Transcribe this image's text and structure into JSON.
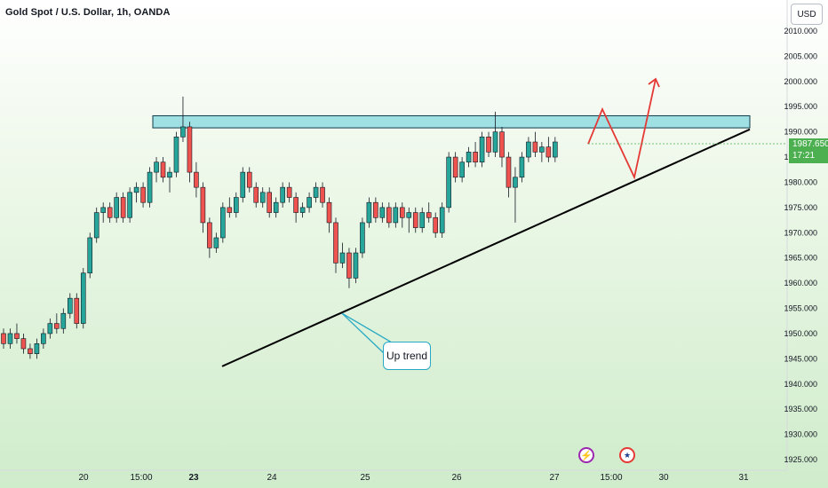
{
  "header": {
    "title": "Gold Spot / U.S. Dollar, 1h, OANDA",
    "currency": "USD"
  },
  "price_tag": {
    "price": "1987.650",
    "countdown": "17:21"
  },
  "annotation": {
    "label": "Up trend"
  },
  "icons": {
    "lightning": "lightning-icon",
    "flag": "us-flag-icon"
  },
  "colors": {
    "up": "#26a69a",
    "down": "#ef5350",
    "resistance_fill": "#8fdbe0",
    "trendline": "#000000",
    "projection": "#e53935",
    "callout": "#26a8c4",
    "price_tag": "#4caf50"
  },
  "chart_data": {
    "type": "candlestick",
    "y_axis": {
      "min": 1925,
      "max": 2010,
      "ticks": [
        "2010.000",
        "2005.000",
        "2000.000",
        "1995.000",
        "1990.000",
        "1985.000",
        "1980.000",
        "1975.000",
        "1970.000",
        "1965.000",
        "1960.000",
        "1955.000",
        "1950.000",
        "1945.000",
        "1940.000",
        "1935.000",
        "1930.000",
        "1925.000"
      ]
    },
    "x_axis": {
      "labels": [
        {
          "text": "20",
          "bold": false
        },
        {
          "text": "15:00",
          "bold": false
        },
        {
          "text": "23",
          "bold": true
        },
        {
          "text": "24",
          "bold": false
        },
        {
          "text": "25",
          "bold": false
        },
        {
          "text": "26",
          "bold": false
        },
        {
          "text": "27",
          "bold": false
        },
        {
          "text": "15:00",
          "bold": false
        },
        {
          "text": "30",
          "bold": false
        },
        {
          "text": "31",
          "bold": false
        }
      ]
    },
    "resistance_zone": {
      "top": 1993.2,
      "bottom": 1990.8
    },
    "trendline": {
      "start": {
        "x": "23 (about 03:00)",
        "y": 1943.5
      },
      "end": {
        "x": "31 (about 00:00)",
        "y": 1990.5
      }
    },
    "projection_path": [
      1987.6,
      1994.5,
      1981.0,
      2000.5
    ],
    "candles": [
      [
        1950,
        1951,
        1947,
        1948
      ],
      [
        1948,
        1951,
        1947,
        1950
      ],
      [
        1950,
        1952,
        1948,
        1949
      ],
      [
        1949,
        1950,
        1946,
        1947
      ],
      [
        1947,
        1948,
        1945,
        1946
      ],
      [
        1946,
        1949,
        1945,
        1948
      ],
      [
        1948,
        1951,
        1947,
        1950
      ],
      [
        1950,
        1953,
        1949,
        1952
      ],
      [
        1952,
        1954,
        1950,
        1951
      ],
      [
        1951,
        1955,
        1950,
        1954
      ],
      [
        1954,
        1958,
        1953,
        1957
      ],
      [
        1957,
        1958,
        1951,
        1952
      ],
      [
        1952,
        1963,
        1951,
        1962
      ],
      [
        1962,
        1970,
        1961,
        1969
      ],
      [
        1969,
        1975,
        1968,
        1974
      ],
      [
        1974,
        1976,
        1972,
        1975
      ],
      [
        1975,
        1976,
        1972,
        1973
      ],
      [
        1973,
        1978,
        1972,
        1977
      ],
      [
        1977,
        1978,
        1972,
        1973
      ],
      [
        1973,
        1979,
        1972,
        1978
      ],
      [
        1978,
        1980,
        1976,
        1979
      ],
      [
        1979,
        1980,
        1975,
        1976
      ],
      [
        1976,
        1983,
        1975,
        1982
      ],
      [
        1982,
        1985,
        1980,
        1984
      ],
      [
        1984,
        1985,
        1980,
        1981
      ],
      [
        1981,
        1983,
        1978,
        1982
      ],
      [
        1982,
        1990,
        1981,
        1989
      ],
      [
        1989,
        1997,
        1988,
        1991
      ],
      [
        1991,
        1992,
        1980,
        1982
      ],
      [
        1982,
        1984,
        1977,
        1979
      ],
      [
        1979,
        1980,
        1970,
        1972
      ],
      [
        1972,
        1973,
        1965,
        1967
      ],
      [
        1967,
        1970,
        1966,
        1969
      ],
      [
        1969,
        1976,
        1968,
        1975
      ],
      [
        1975,
        1977,
        1973,
        1974
      ],
      [
        1974,
        1978,
        1973,
        1977
      ],
      [
        1977,
        1983,
        1976,
        1982
      ],
      [
        1982,
        1983,
        1978,
        1979
      ],
      [
        1979,
        1980,
        1975,
        1976
      ],
      [
        1976,
        1979,
        1975,
        1978
      ],
      [
        1978,
        1979,
        1973,
        1974
      ],
      [
        1974,
        1977,
        1973,
        1976
      ],
      [
        1976,
        1980,
        1975,
        1979
      ],
      [
        1979,
        1980,
        1976,
        1977
      ],
      [
        1977,
        1978,
        1972,
        1974
      ],
      [
        1974,
        1976,
        1973,
        1975
      ],
      [
        1975,
        1978,
        1974,
        1977
      ],
      [
        1977,
        1980,
        1976,
        1979
      ],
      [
        1979,
        1980,
        1975,
        1976
      ],
      [
        1976,
        1977,
        1970,
        1972
      ],
      [
        1972,
        1973,
        1962,
        1964
      ],
      [
        1964,
        1968,
        1963,
        1966
      ],
      [
        1966,
        1967,
        1959,
        1961
      ],
      [
        1961,
        1967,
        1960,
        1966
      ],
      [
        1966,
        1973,
        1965,
        1972
      ],
      [
        1972,
        1977,
        1971,
        1976
      ],
      [
        1976,
        1977,
        1972,
        1973
      ],
      [
        1973,
        1976,
        1972,
        1975
      ],
      [
        1975,
        1976,
        1971,
        1972
      ],
      [
        1972,
        1976,
        1971,
        1975
      ],
      [
        1975,
        1976,
        1971,
        1973
      ],
      [
        1973,
        1975,
        1970,
        1974
      ],
      [
        1974,
        1975,
        1970,
        1971
      ],
      [
        1971,
        1975,
        1970,
        1974
      ],
      [
        1974,
        1976,
        1972,
        1973
      ],
      [
        1973,
        1974,
        1969,
        1970
      ],
      [
        1970,
        1976,
        1969,
        1975
      ],
      [
        1975,
        1986,
        1974,
        1985
      ],
      [
        1985,
        1986,
        1980,
        1981
      ],
      [
        1981,
        1985,
        1980,
        1984
      ],
      [
        1984,
        1987,
        1983,
        1986
      ],
      [
        1986,
        1988,
        1983,
        1984
      ],
      [
        1984,
        1990,
        1983,
        1989
      ],
      [
        1989,
        1990,
        1985,
        1986
      ],
      [
        1986,
        1994,
        1985,
        1990
      ],
      [
        1990,
        1991,
        1983,
        1985
      ],
      [
        1985,
        1986,
        1977,
        1979
      ],
      [
        1979,
        1983,
        1972,
        1981
      ],
      [
        1981,
        1986,
        1980,
        1985
      ],
      [
        1985,
        1989,
        1984,
        1988
      ],
      [
        1988,
        1990,
        1985,
        1986
      ],
      [
        1986,
        1988,
        1984,
        1987
      ],
      [
        1987,
        1989,
        1984,
        1985
      ],
      [
        1985,
        1989,
        1984,
        1988
      ]
    ]
  }
}
